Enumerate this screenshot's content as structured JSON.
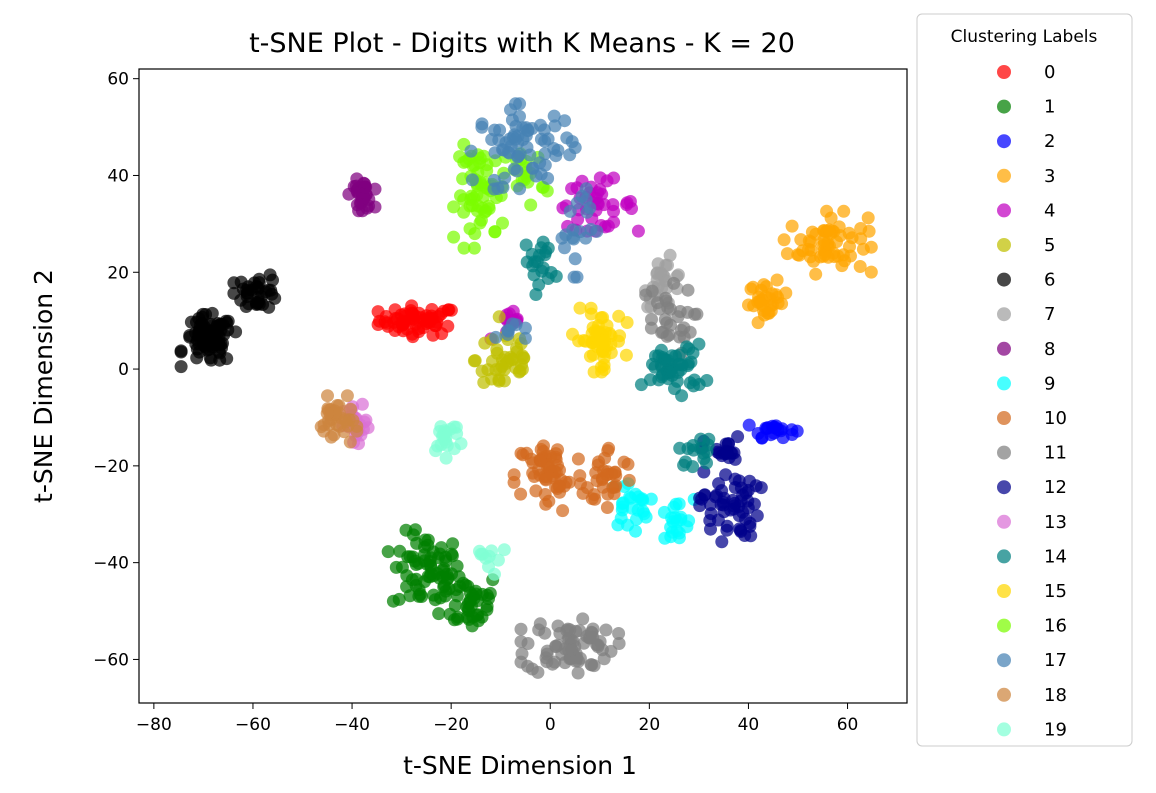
{
  "chart_data": {
    "type": "scatter",
    "title": "t-SNE Plot - Digits with K Means - K = 20",
    "xlabel": "t-SNE Dimension 1",
    "ylabel": "t-SNE Dimension 2",
    "xlim": [
      -83,
      72
    ],
    "ylim": [
      -69,
      62
    ],
    "xticks": [
      -80,
      -60,
      -40,
      -20,
      0,
      20,
      40,
      60
    ],
    "yticks": [
      -60,
      -40,
      -20,
      0,
      20,
      40,
      60
    ],
    "grid": false,
    "legend": {
      "title": "Clustering Labels",
      "placement": "outside-right"
    },
    "series": [
      {
        "name": "0",
        "color": "#ff0000",
        "clusters": [
          {
            "cx": -26.5,
            "cy": 10,
            "sx": 4,
            "sy": 1.5,
            "n": 60
          }
        ]
      },
      {
        "name": "1",
        "color": "#008000",
        "clusters": [
          {
            "cx": -25,
            "cy": -42,
            "sx": 3.5,
            "sy": 4,
            "n": 70
          },
          {
            "cx": -16,
            "cy": -48,
            "sx": 3,
            "sy": 3,
            "n": 40
          }
        ]
      },
      {
        "name": "2",
        "color": "#0000ff",
        "clusters": [
          {
            "cx": 45,
            "cy": -12.5,
            "sx": 2.2,
            "sy": 0.8,
            "n": 20
          }
        ]
      },
      {
        "name": "3",
        "color": "#ffa500",
        "clusters": [
          {
            "cx": 56,
            "cy": 26,
            "sx": 4,
            "sy": 3,
            "n": 60
          },
          {
            "cx": 44,
            "cy": 14,
            "sx": 2,
            "sy": 2,
            "n": 30
          }
        ]
      },
      {
        "name": "4",
        "color": "#c000c0",
        "clusters": [
          {
            "cx": 9,
            "cy": 34,
            "sx": 4,
            "sy": 2.5,
            "n": 40
          },
          {
            "cx": -8,
            "cy": 9,
            "sx": 2,
            "sy": 1.5,
            "n": 12
          }
        ]
      },
      {
        "name": "5",
        "color": "#bfbf00",
        "clusters": [
          {
            "cx": -9,
            "cy": 2,
            "sx": 3,
            "sy": 4,
            "n": 40
          }
        ]
      },
      {
        "name": "6",
        "color": "#000000",
        "clusters": [
          {
            "cx": -69,
            "cy": 6,
            "sx": 2.5,
            "sy": 2.5,
            "n": 80
          },
          {
            "cx": -59,
            "cy": 16,
            "sx": 2.2,
            "sy": 1.8,
            "n": 35
          }
        ]
      },
      {
        "name": "7",
        "color": "#a0a0a0",
        "clusters": [
          {
            "cx": 23,
            "cy": 18,
            "sx": 2,
            "sy": 2.5,
            "n": 25
          }
        ]
      },
      {
        "name": "8",
        "color": "#800080",
        "clusters": [
          {
            "cx": -38,
            "cy": 36,
            "sx": 1.2,
            "sy": 1.5,
            "n": 30
          }
        ]
      },
      {
        "name": "9",
        "color": "#00ffff",
        "clusters": [
          {
            "cx": 16,
            "cy": -28,
            "sx": 2,
            "sy": 2.5,
            "n": 25
          },
          {
            "cx": 25,
            "cy": -32,
            "sx": 2,
            "sy": 2.5,
            "n": 20
          }
        ]
      },
      {
        "name": "10",
        "color": "#d2691e",
        "clusters": [
          {
            "cx": 0,
            "cy": -22,
            "sx": 3.5,
            "sy": 4,
            "n": 60
          },
          {
            "cx": 12,
            "cy": -22,
            "sx": 2.5,
            "sy": 3,
            "n": 30
          }
        ]
      },
      {
        "name": "11",
        "color": "#808080",
        "clusters": [
          {
            "cx": 4,
            "cy": -57,
            "sx": 4.5,
            "sy": 3,
            "n": 70
          },
          {
            "cx": 23,
            "cy": 10,
            "sx": 3,
            "sy": 3.5,
            "n": 30
          }
        ]
      },
      {
        "name": "12",
        "color": "#00008b",
        "clusters": [
          {
            "cx": 36,
            "cy": -28,
            "sx": 3,
            "sy": 3.5,
            "n": 55
          },
          {
            "cx": 35,
            "cy": -17,
            "sx": 2,
            "sy": 1.5,
            "n": 20
          }
        ]
      },
      {
        "name": "13",
        "color": "#da70d6",
        "clusters": [
          {
            "cx": -39,
            "cy": -12,
            "sx": 1.3,
            "sy": 2.2,
            "n": 25
          }
        ]
      },
      {
        "name": "14",
        "color": "#008080",
        "clusters": [
          {
            "cx": 25,
            "cy": 0,
            "sx": 3,
            "sy": 2.5,
            "n": 50
          },
          {
            "cx": -2,
            "cy": 22,
            "sx": 1.5,
            "sy": 3,
            "n": 20
          },
          {
            "cx": 30,
            "cy": -17,
            "sx": 2,
            "sy": 1.5,
            "n": 15
          }
        ]
      },
      {
        "name": "15",
        "color": "#ffd700",
        "clusters": [
          {
            "cx": 10,
            "cy": 6,
            "sx": 2.5,
            "sy": 3,
            "n": 50
          }
        ]
      },
      {
        "name": "16",
        "color": "#7cfc00",
        "clusters": [
          {
            "cx": -14,
            "cy": 36,
            "sx": 2.5,
            "sy": 5,
            "n": 60
          },
          {
            "cx": -5,
            "cy": 40,
            "sx": 2,
            "sy": 3,
            "n": 20
          }
        ]
      },
      {
        "name": "17",
        "color": "#4682b4",
        "clusters": [
          {
            "cx": -5,
            "cy": 46,
            "sx": 5,
            "sy": 4,
            "n": 70
          },
          {
            "cx": 5,
            "cy": 30,
            "sx": 2,
            "sy": 5,
            "n": 20
          },
          {
            "cx": -8,
            "cy": 8,
            "sx": 1.5,
            "sy": 1.2,
            "n": 8
          }
        ]
      },
      {
        "name": "18",
        "color": "#cd853f",
        "clusters": [
          {
            "cx": -43,
            "cy": -11,
            "sx": 1.8,
            "sy": 2.5,
            "n": 35
          }
        ]
      },
      {
        "name": "19",
        "color": "#7fffd4",
        "clusters": [
          {
            "cx": -21,
            "cy": -14,
            "sx": 1.8,
            "sy": 2,
            "n": 20
          },
          {
            "cx": -12,
            "cy": -38,
            "sx": 2,
            "sy": 2,
            "n": 10
          }
        ]
      }
    ]
  }
}
